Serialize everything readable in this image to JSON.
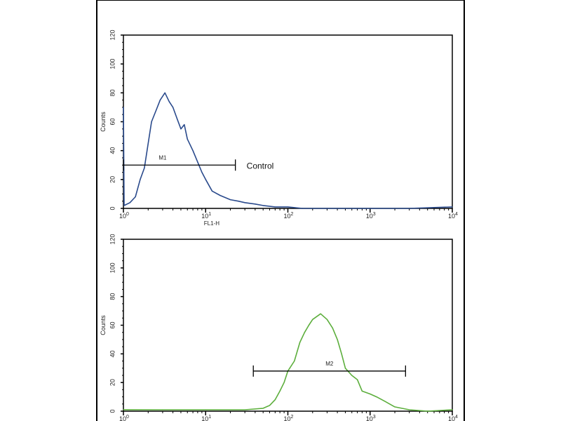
{
  "chart_data": [
    {
      "type": "line",
      "xscale": "log",
      "xlim": [
        1,
        10000
      ],
      "ylim": [
        0,
        120
      ],
      "xlabel": "FL1-H",
      "ylabel": "Counts",
      "xticks": [
        {
          "base": "10",
          "exp": "0"
        },
        {
          "base": "10",
          "exp": "1"
        },
        {
          "base": "10",
          "exp": "2"
        },
        {
          "base": "10",
          "exp": "3"
        },
        {
          "base": "10",
          "exp": "4"
        }
      ],
      "yticks": [
        "0",
        "20",
        "40",
        "60",
        "80",
        "100",
        "120"
      ],
      "color": "#2a4a8c",
      "marker": {
        "label": "M1",
        "range": [
          1.0,
          23
        ],
        "level": 30
      },
      "annotation": "Control",
      "x": [
        1.0,
        1.01,
        1.02,
        1.2,
        1.4,
        1.6,
        1.8,
        2.0,
        2.2,
        2.5,
        2.8,
        3.2,
        3.6,
        4.0,
        4.5,
        5.0,
        5.5,
        6.0,
        7,
        8,
        9,
        10,
        12,
        15,
        20,
        25,
        30,
        40,
        50,
        70,
        100,
        150,
        300,
        1000,
        3000,
        10000
      ],
      "y": [
        70,
        36,
        2,
        4,
        8,
        20,
        28,
        45,
        60,
        68,
        75,
        80,
        74,
        70,
        62,
        55,
        58,
        48,
        40,
        32,
        25,
        20,
        12,
        9,
        6,
        5,
        4,
        3,
        2,
        1,
        1,
        0,
        0,
        0,
        0,
        1
      ]
    },
    {
      "type": "line",
      "xscale": "log",
      "xlim": [
        1,
        10000
      ],
      "ylim": [
        0,
        120
      ],
      "xlabel": "",
      "ylabel": "Counts",
      "xticks": [
        {
          "base": "10",
          "exp": "0"
        },
        {
          "base": "10",
          "exp": "1"
        },
        {
          "base": "10",
          "exp": "2"
        },
        {
          "base": "10",
          "exp": "3"
        },
        {
          "base": "10",
          "exp": "4"
        }
      ],
      "yticks": [
        "0",
        "20",
        "40",
        "60",
        "80",
        "100",
        "120"
      ],
      "color": "#5cae3c",
      "marker": {
        "label": "M2",
        "range": [
          38,
          2700
        ],
        "level": 28
      },
      "annotation": "",
      "x": [
        1,
        3,
        10,
        30,
        50,
        60,
        70,
        80,
        90,
        100,
        120,
        140,
        160,
        180,
        200,
        250,
        300,
        350,
        400,
        450,
        500,
        600,
        700,
        800,
        1000,
        1200,
        1500,
        2000,
        3000,
        5000,
        10000
      ],
      "y": [
        1,
        1,
        1,
        1,
        2,
        4,
        8,
        14,
        20,
        28,
        35,
        48,
        55,
        60,
        64,
        68,
        64,
        58,
        50,
        40,
        30,
        25,
        22,
        14,
        12,
        10,
        7,
        3,
        1,
        0,
        1
      ]
    }
  ]
}
